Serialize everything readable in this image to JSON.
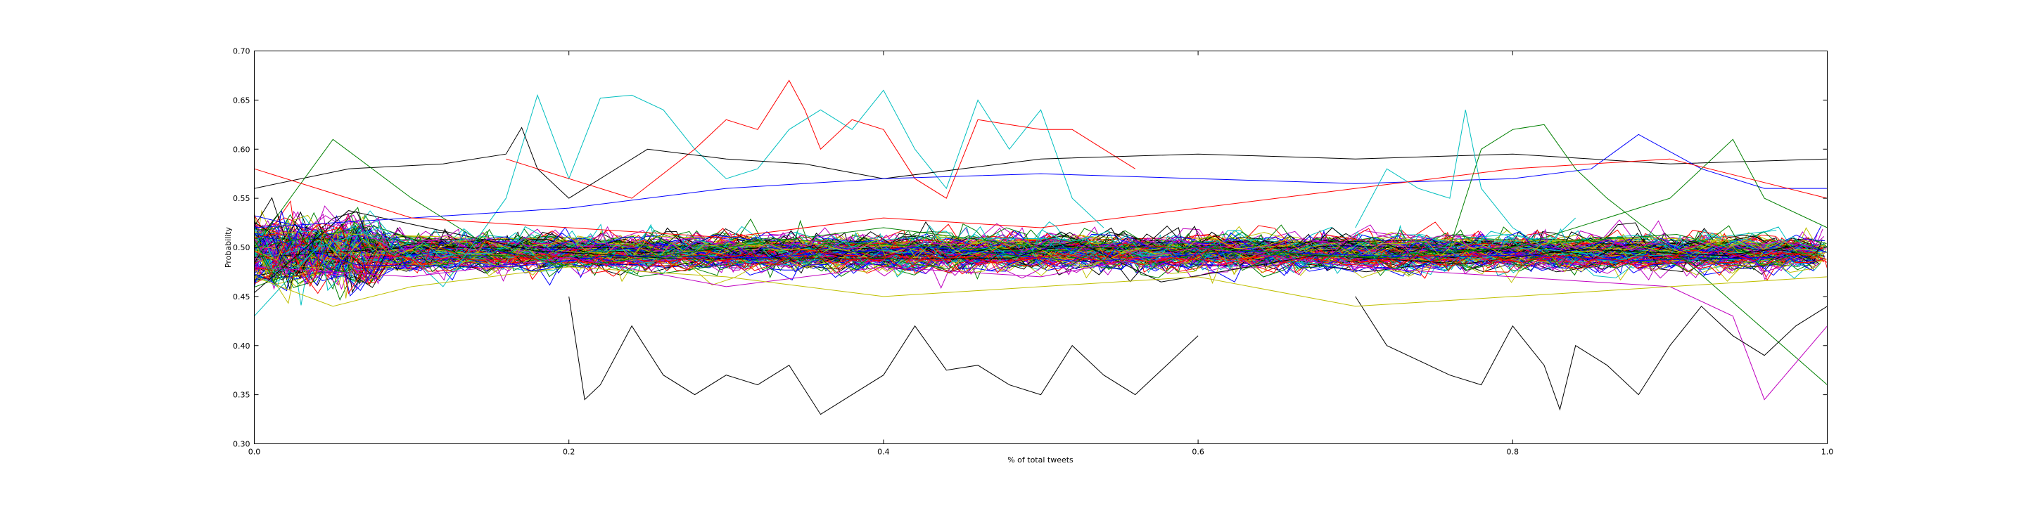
{
  "chart_data": {
    "type": "line",
    "title": "",
    "xlabel": "% of total tweets",
    "ylabel": "Probability",
    "xlim": [
      0.0,
      1.0
    ],
    "ylim": [
      0.3,
      0.7
    ],
    "xticks": [
      "0.0",
      "0.2",
      "0.4",
      "0.6",
      "0.8",
      "1.0"
    ],
    "yticks": [
      "0.30",
      "0.35",
      "0.40",
      "0.45",
      "0.50",
      "0.55",
      "0.60",
      "0.65",
      "0.70"
    ],
    "grid": false,
    "legend": "none",
    "colors": [
      "#0000ff",
      "#008000",
      "#ff0000",
      "#00bfbf",
      "#bf00bf",
      "#bfbf00",
      "#000000"
    ],
    "series": [
      {
        "color": "#00bfbf",
        "x": [
          0.0,
          0.04,
          0.08,
          0.12,
          0.16,
          0.18,
          0.2,
          0.22,
          0.24,
          0.26,
          0.28,
          0.3,
          0.32,
          0.34,
          0.36,
          0.38,
          0.4,
          0.42,
          0.44,
          0.46,
          0.48,
          0.5,
          0.52,
          0.54
        ],
        "y": [
          0.43,
          0.5,
          0.52,
          0.46,
          0.55,
          0.655,
          0.57,
          0.652,
          0.655,
          0.64,
          0.6,
          0.57,
          0.58,
          0.62,
          0.64,
          0.62,
          0.66,
          0.6,
          0.56,
          0.65,
          0.6,
          0.64,
          0.55,
          0.52
        ]
      },
      {
        "color": "#ff0000",
        "x": [
          0.16,
          0.2,
          0.24,
          0.28,
          0.3,
          0.32,
          0.34,
          0.35,
          0.36,
          0.38,
          0.4,
          0.42,
          0.44,
          0.46,
          0.48,
          0.5,
          0.52,
          0.54,
          0.56
        ],
        "y": [
          0.59,
          0.57,
          0.55,
          0.6,
          0.63,
          0.62,
          0.67,
          0.64,
          0.6,
          0.63,
          0.62,
          0.57,
          0.55,
          0.63,
          0.625,
          0.62,
          0.62,
          0.6,
          0.58
        ]
      },
      {
        "color": "#000000",
        "x": [
          0.0,
          0.06,
          0.12,
          0.16,
          0.17,
          0.18,
          0.2,
          0.25,
          0.3,
          0.35,
          0.4,
          0.5,
          0.6,
          0.7,
          0.8,
          0.9,
          1.0
        ],
        "y": [
          0.56,
          0.58,
          0.585,
          0.595,
          0.622,
          0.58,
          0.55,
          0.6,
          0.59,
          0.585,
          0.57,
          0.59,
          0.595,
          0.59,
          0.595,
          0.585,
          0.59
        ]
      },
      {
        "color": "#000000",
        "x": [
          0.2,
          0.21,
          0.22,
          0.24,
          0.26,
          0.28,
          0.3,
          0.32,
          0.34,
          0.36,
          0.38,
          0.4,
          0.42,
          0.44,
          0.46,
          0.48,
          0.5,
          0.52,
          0.54,
          0.56,
          0.58,
          0.6
        ],
        "y": [
          0.45,
          0.345,
          0.36,
          0.42,
          0.37,
          0.35,
          0.37,
          0.36,
          0.38,
          0.33,
          0.35,
          0.37,
          0.42,
          0.375,
          0.38,
          0.36,
          0.35,
          0.4,
          0.37,
          0.35,
          0.38,
          0.41
        ]
      },
      {
        "color": "#0000ff",
        "x": [
          0.0,
          0.1,
          0.2,
          0.3,
          0.4,
          0.5,
          0.6,
          0.7,
          0.8,
          0.85,
          0.88,
          0.92,
          0.96,
          1.0
        ],
        "y": [
          0.52,
          0.53,
          0.54,
          0.56,
          0.57,
          0.575,
          0.57,
          0.565,
          0.57,
          0.58,
          0.615,
          0.58,
          0.56,
          0.56
        ]
      },
      {
        "color": "#008000",
        "x": [
          0.76,
          0.78,
          0.8,
          0.82,
          0.84,
          0.86,
          0.9,
          0.95,
          1.0
        ],
        "y": [
          0.5,
          0.6,
          0.62,
          0.625,
          0.58,
          0.55,
          0.5,
          0.43,
          0.36
        ]
      },
      {
        "color": "#bf00bf",
        "x": [
          0.0,
          0.1,
          0.2,
          0.3,
          0.4,
          0.5,
          0.6,
          0.7,
          0.8,
          0.9,
          0.94,
          0.96,
          1.0
        ],
        "y": [
          0.48,
          0.47,
          0.49,
          0.46,
          0.48,
          0.47,
          0.5,
          0.48,
          0.47,
          0.46,
          0.43,
          0.345,
          0.42
        ]
      },
      {
        "color": "#00bfbf",
        "x": [
          0.7,
          0.72,
          0.74,
          0.76,
          0.77,
          0.78,
          0.8,
          0.82,
          0.84
        ],
        "y": [
          0.52,
          0.58,
          0.56,
          0.55,
          0.64,
          0.56,
          0.52,
          0.5,
          0.53
        ]
      },
      {
        "color": "#000000",
        "x": [
          0.7,
          0.72,
          0.76,
          0.78,
          0.8,
          0.82,
          0.83,
          0.84,
          0.86,
          0.88,
          0.9,
          0.92,
          0.94,
          0.96,
          0.98,
          1.0
        ],
        "y": [
          0.45,
          0.4,
          0.37,
          0.36,
          0.42,
          0.38,
          0.335,
          0.4,
          0.38,
          0.35,
          0.4,
          0.44,
          0.41,
          0.39,
          0.42,
          0.44
        ]
      },
      {
        "color": "#008000",
        "x": [
          0.0,
          0.05,
          0.1,
          0.15,
          0.2,
          0.3,
          0.4,
          0.5,
          0.6,
          0.7,
          0.8,
          0.9,
          0.92,
          0.94,
          0.96,
          1.0
        ],
        "y": [
          0.5,
          0.61,
          0.55,
          0.5,
          0.48,
          0.5,
          0.52,
          0.5,
          0.5,
          0.49,
          0.5,
          0.55,
          0.58,
          0.61,
          0.55,
          0.52
        ]
      },
      {
        "color": "#ff0000",
        "x": [
          0.0,
          0.1,
          0.2,
          0.3,
          0.4,
          0.5,
          0.6,
          0.7,
          0.8,
          0.9,
          0.95,
          1.0
        ],
        "y": [
          0.58,
          0.53,
          0.52,
          0.51,
          0.53,
          0.52,
          0.54,
          0.56,
          0.58,
          0.59,
          0.57,
          0.55
        ]
      },
      {
        "color": "#bfbf00",
        "x": [
          0.0,
          0.05,
          0.1,
          0.2,
          0.3,
          0.4,
          0.5,
          0.6,
          0.7,
          0.8,
          0.9,
          1.0
        ],
        "y": [
          0.47,
          0.44,
          0.46,
          0.48,
          0.47,
          0.45,
          0.46,
          0.47,
          0.44,
          0.45,
          0.46,
          0.47
        ]
      }
    ],
    "noise_band": {
      "description": "Hundreds of overlapping jagged series fill the band between roughly 0.40 and 0.58",
      "count": 150,
      "center": 0.495,
      "spread": 0.035,
      "x_start": 0.0,
      "x_end": 1.0
    }
  }
}
